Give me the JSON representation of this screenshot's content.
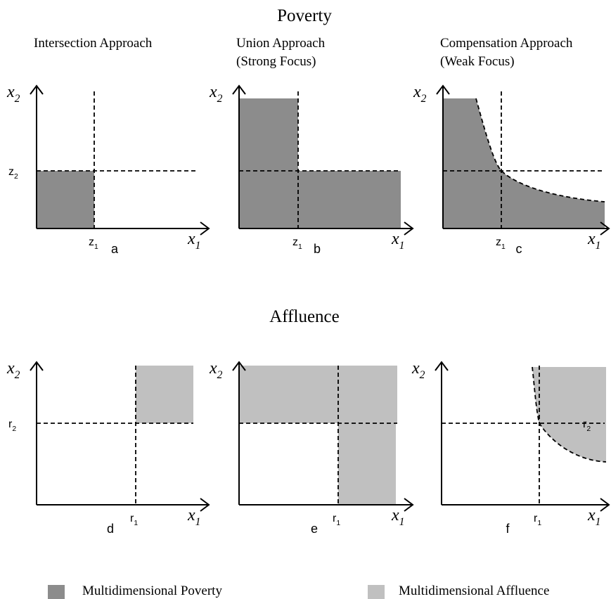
{
  "poverty": {
    "title": "Poverty",
    "panels": [
      {
        "title": [
          "Intersection Approach"
        ],
        "letter": "a",
        "y_axis": {
          "base": "x",
          "sub": "2"
        },
        "x_axis": {
          "base": "x",
          "sub": "1"
        },
        "x_threshold": {
          "base": "z",
          "sub": "1"
        },
        "y_threshold": {
          "base": "z",
          "sub": "2"
        }
      },
      {
        "title": [
          "Union Approach",
          "(Strong Focus)"
        ],
        "letter": "b",
        "y_axis": {
          "base": "x",
          "sub": "2"
        },
        "x_axis": {
          "base": "x",
          "sub": "1"
        },
        "x_threshold": {
          "base": "z",
          "sub": "1"
        }
      },
      {
        "title": [
          "Compensation Approach",
          "(Weak Focus)"
        ],
        "letter": "c",
        "y_axis": {
          "base": "x",
          "sub": "2"
        },
        "x_axis": {
          "base": "x",
          "sub": "1"
        },
        "x_threshold": {
          "base": "z",
          "sub": "1"
        }
      }
    ]
  },
  "affluence": {
    "title": "Affluence",
    "panels": [
      {
        "letter": "d",
        "y_axis": {
          "base": "x",
          "sub": "2"
        },
        "x_axis": {
          "base": "x",
          "sub": "1"
        },
        "x_threshold": {
          "base": "r",
          "sub": "1"
        },
        "y_threshold": {
          "base": "r",
          "sub": "2"
        }
      },
      {
        "letter": "e",
        "y_axis": {
          "base": "x",
          "sub": "2"
        },
        "x_axis": {
          "base": "x",
          "sub": "1"
        },
        "x_threshold": {
          "base": "r",
          "sub": "1"
        }
      },
      {
        "letter": "f",
        "y_axis": {
          "base": "x",
          "sub": "2"
        },
        "x_axis": {
          "base": "x",
          "sub": "1"
        },
        "x_threshold": {
          "base": "r",
          "sub": "1"
        },
        "y_threshold": {
          "base": "r",
          "sub": "2"
        }
      }
    ]
  },
  "legend": [
    {
      "label": "Multidimensional Poverty",
      "color": "#8c8c8c"
    },
    {
      "label": "Multidimensional Affluence",
      "color": "#c0c0c0"
    }
  ]
}
